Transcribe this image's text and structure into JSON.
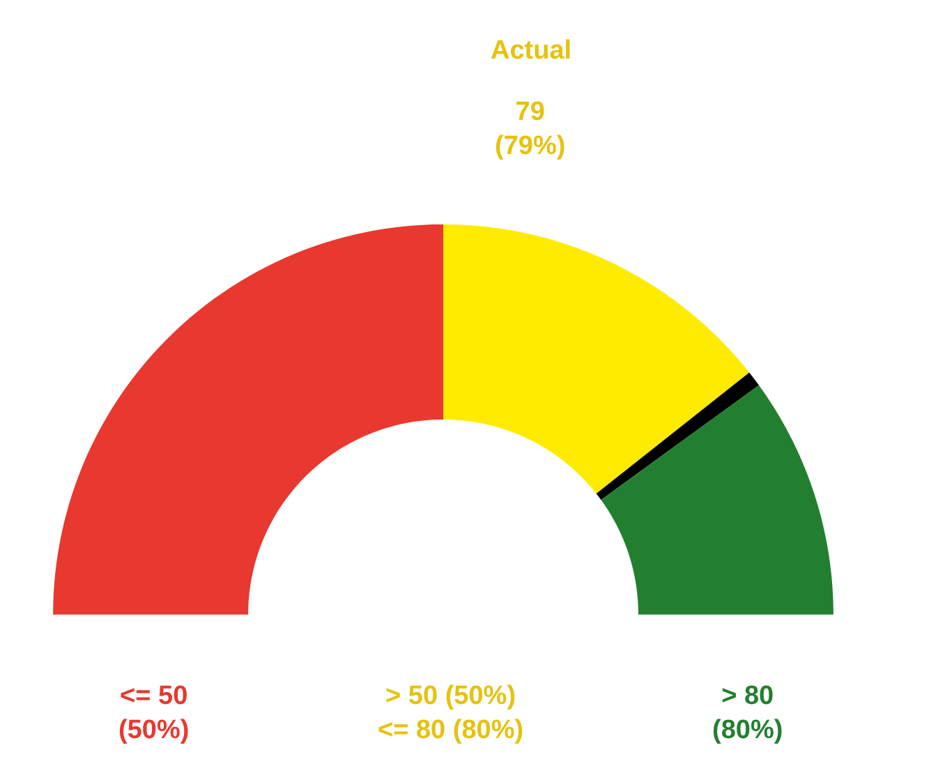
{
  "chart_data": {
    "type": "donut",
    "title": "Actual",
    "categories": [
      null,
      null,
      null,
      null
    ],
    "values": [
      50,
      28.7,
      1.3,
      20
    ],
    "colors": [
      "#e8382f",
      "#ffeb00",
      "#000000",
      "#237f30"
    ],
    "annotations": [
      "79\n(79%)",
      "<= 50\n(50%)",
      "> 50 (50%)\n<= 80 (80%)",
      "> 80\n(80%)"
    ]
  }
}
